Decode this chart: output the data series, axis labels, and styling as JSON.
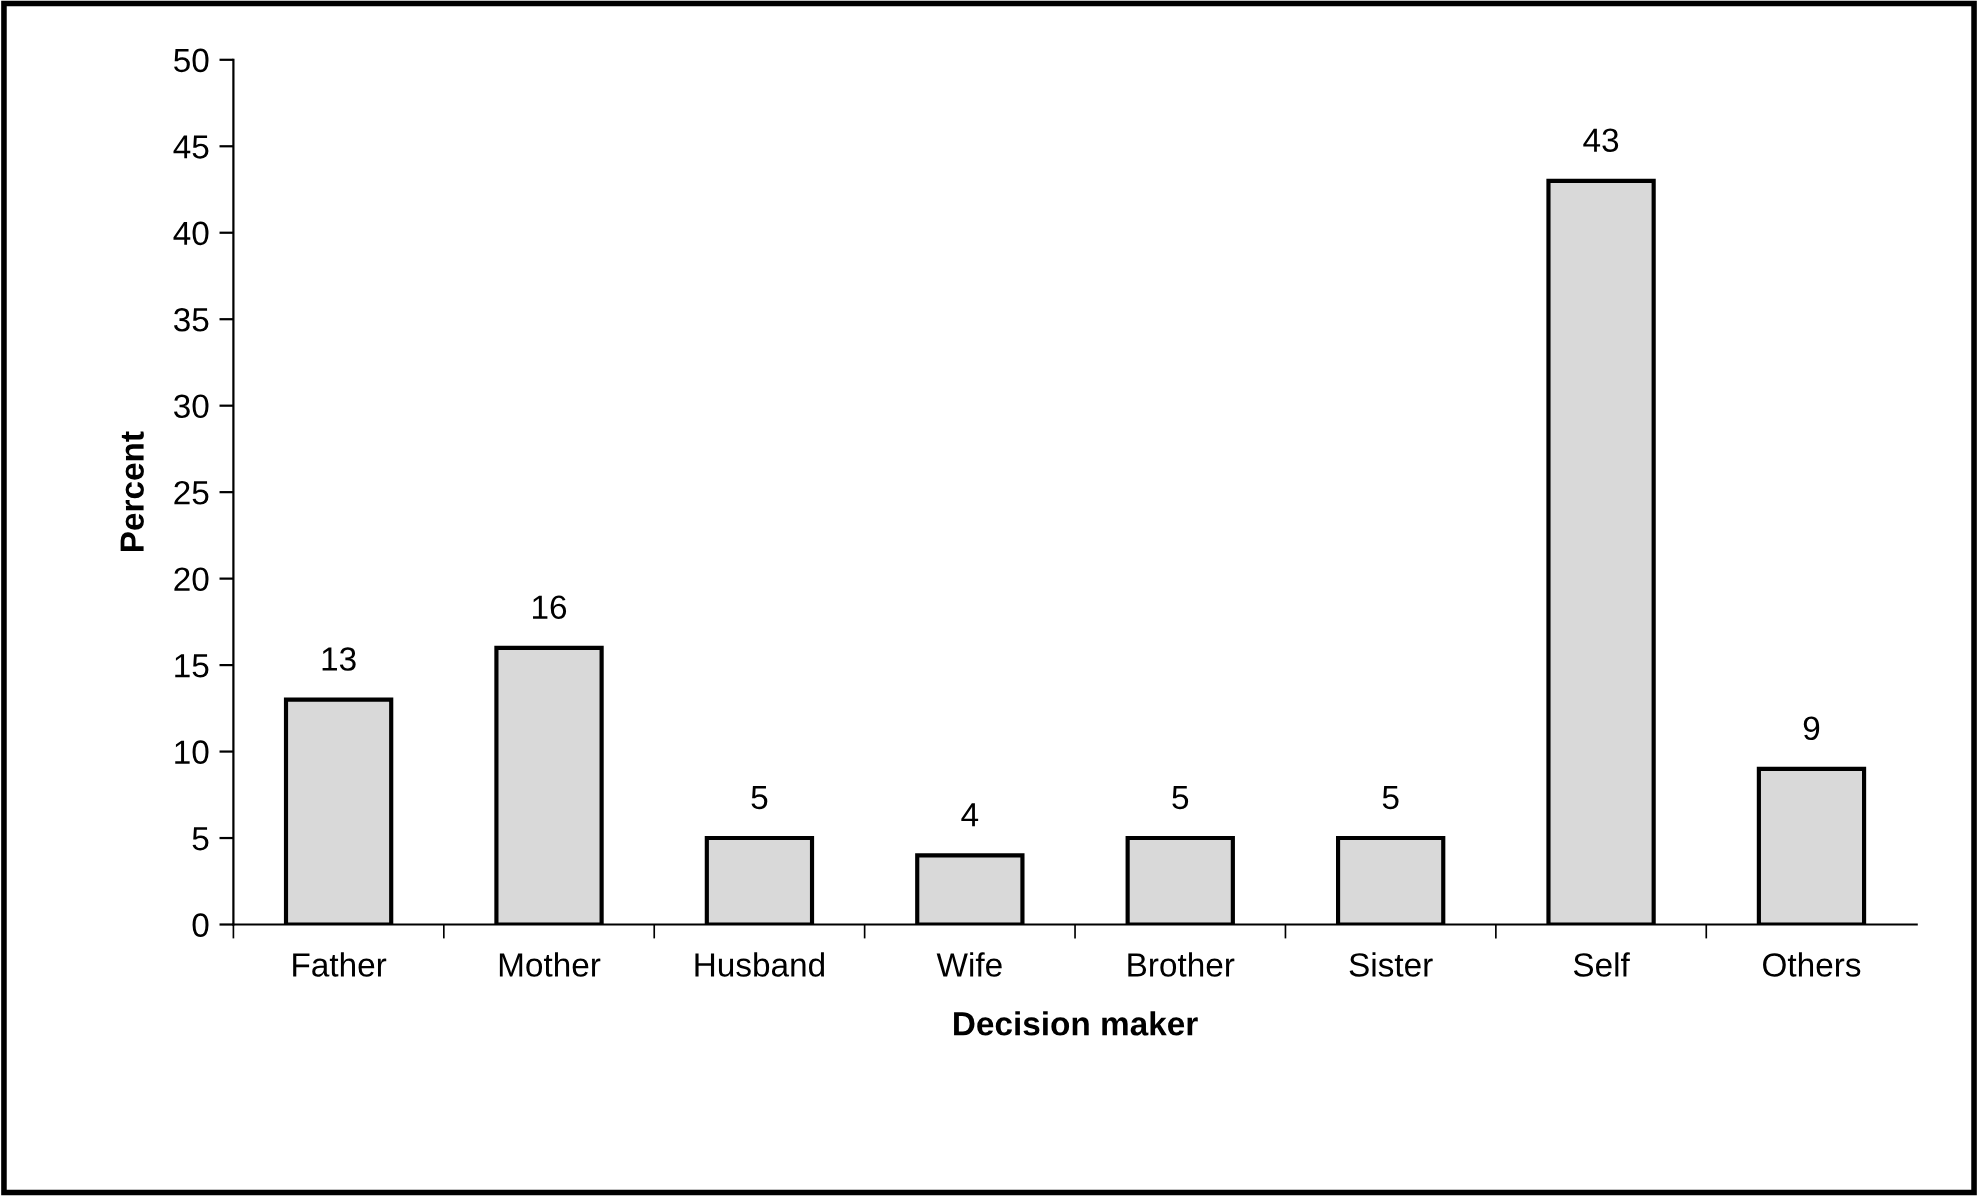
{
  "chart_data": {
    "type": "bar",
    "xlabel": "Decision maker",
    "ylabel": "Percent",
    "categories": [
      "Father",
      "Mother",
      "Husband",
      "Wife",
      "Brother",
      "Sister",
      "Self",
      "Others"
    ],
    "values": [
      13,
      16,
      5,
      4,
      5,
      5,
      43,
      9
    ],
    "color": "#d9d9d9",
    "ylim": [
      0,
      50
    ],
    "yticks": [
      0,
      5,
      10,
      15,
      20,
      25,
      30,
      35,
      40,
      45,
      50
    ],
    "data_labels": true,
    "grid": false,
    "legend": false
  }
}
